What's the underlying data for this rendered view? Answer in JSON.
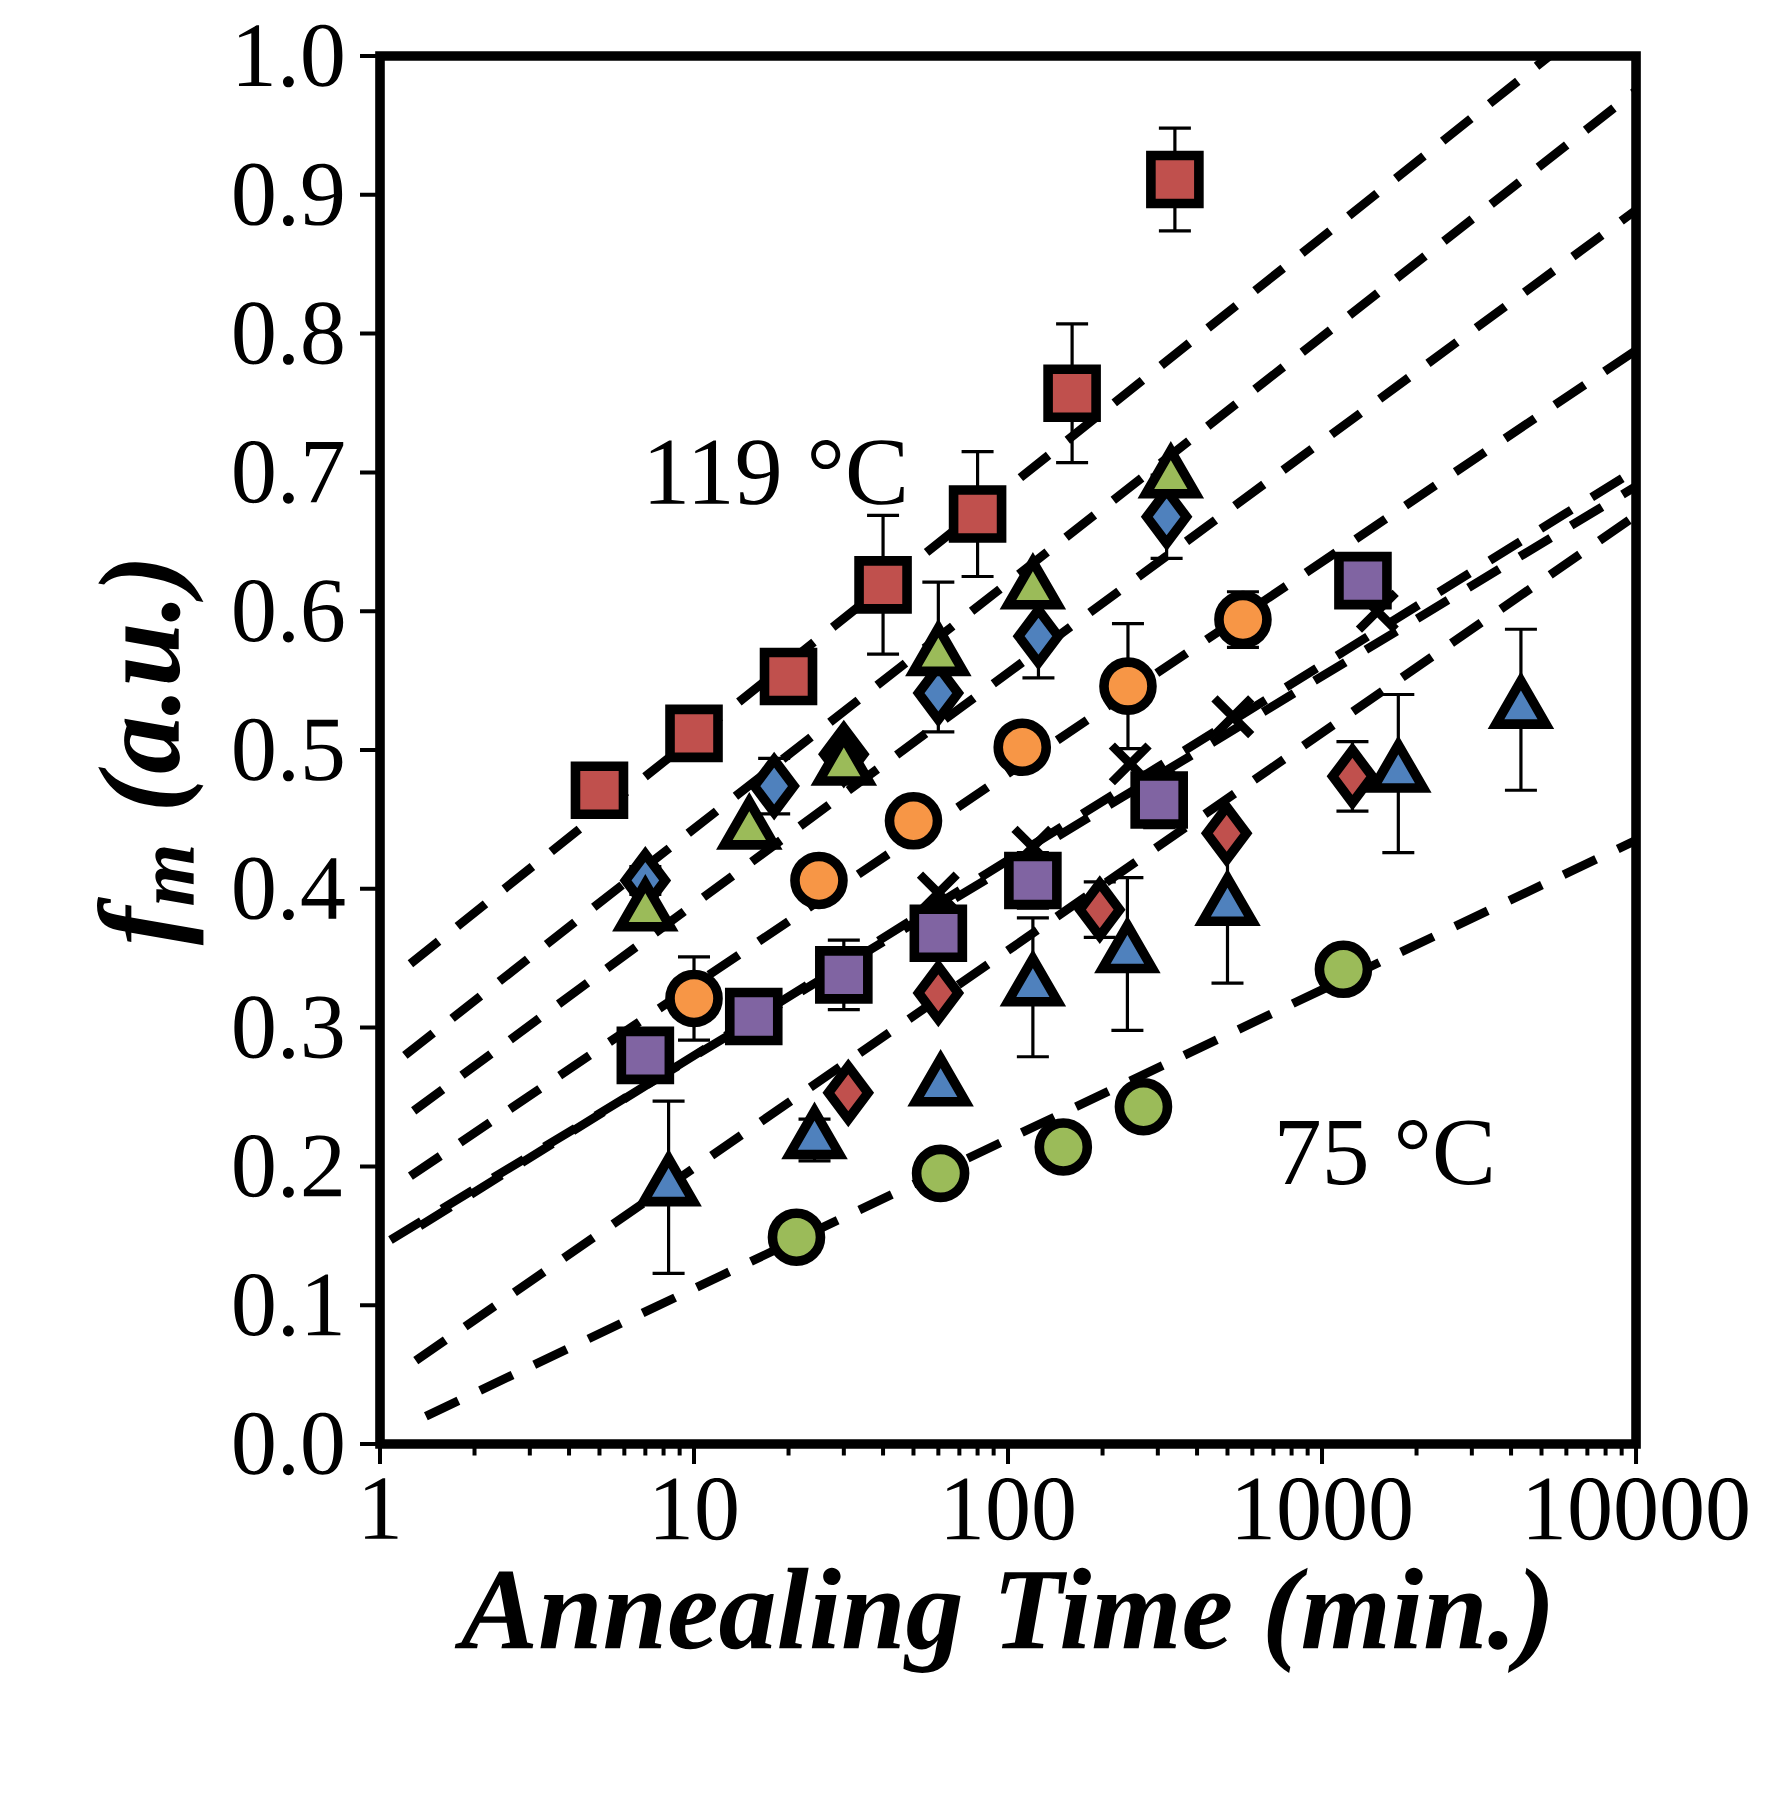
{
  "chart_data": {
    "type": "scatter",
    "xlabel": "Annealing Time (min.)",
    "ylabel": "*f*$_{m}$ (a.u.)",
    "log": "x",
    "xlim": [
      1,
      10000
    ],
    "xticks": [
      1,
      10,
      100,
      1000,
      10000
    ],
    "ylim": [
      0,
      1
    ],
    "yticks": [
      {
        "value": 0,
        "label": "0.0"
      },
      {
        "value": 0.1,
        "label": "0.1"
      },
      {
        "value": 0.2,
        "label": "0.2"
      },
      {
        "value": 0.3,
        "label": "0.3"
      },
      {
        "value": 0.4,
        "label": "0.4"
      },
      {
        "value": 0.5,
        "label": "0.5"
      },
      {
        "value": 0.6,
        "label": "0.6"
      },
      {
        "value": 0.7,
        "label": "0.7"
      },
      {
        "value": 0.8,
        "label": "0.8"
      },
      {
        "value": 0.9,
        "label": "0.9"
      },
      {
        "value": 1,
        "label": "1.0"
      }
    ],
    "grid": false,
    "annotations": [
      "119 °C",
      "75 °C"
    ],
    "series": [
      {
        "type": "line",
        "color": "#000000",
        "line_style": "dashed",
        "marker": "none",
        "x": [
          1.25,
          5300
        ],
        "values": [
          0.346,
          1.0
        ]
      },
      {
        "type": "line",
        "color": "#000000",
        "line_style": "dashed",
        "marker": "none",
        "x": [
          1.2,
          10000
        ],
        "values": [
          0.28,
          0.975
        ]
      },
      {
        "type": "line",
        "color": "#000000",
        "line_style": "dashed",
        "marker": "none",
        "x": [
          1.28,
          10000
        ],
        "values": [
          0.24,
          0.889
        ]
      },
      {
        "type": "line",
        "color": "#000000",
        "line_style": "dashed",
        "marker": "none",
        "x": [
          1.25,
          10000
        ],
        "values": [
          0.193,
          0.788
        ]
      },
      {
        "type": "line",
        "color": "#000000",
        "line_style": "dashed",
        "marker": "none",
        "x": [
          1.34,
          10000
        ],
        "values": [
          0.157,
          0.702
        ]
      },
      {
        "type": "line",
        "color": "#000000",
        "line_style": "dashed",
        "marker": "none",
        "x": [
          1.08,
          10000
        ],
        "values": [
          0.147,
          0.69
        ]
      },
      {
        "type": "line",
        "color": "#000000",
        "line_style": "dashed",
        "marker": "none",
        "x": [
          1.3,
          10000
        ],
        "values": [
          0.06,
          0.669
        ]
      },
      {
        "type": "line",
        "color": "#000000",
        "line_style": "dashed",
        "marker": "none",
        "x": [
          1.4,
          10000
        ],
        "values": [
          0.02,
          0.435
        ]
      },
      {
        "color": "#c0504d",
        "marker": "square",
        "x": [
          5,
          10,
          20,
          40,
          80,
          160,
          340
        ],
        "values": [
          0.471,
          0.512,
          0.553,
          0.619,
          0.67,
          0.757,
          0.911
        ],
        "errors": [
          null,
          null,
          null,
          0.05,
          0.045,
          0.05,
          0.037
        ]
      },
      {
        "color": "#4f81bd",
        "marker": "diamond",
        "x": [
          7,
          18,
          30,
          60,
          125,
          320
        ],
        "values": [
          0.406,
          0.474,
          0.497,
          0.541,
          0.582,
          0.668
        ],
        "errors": [
          0.01,
          0.02,
          null,
          null,
          0.03,
          0.03
        ]
      },
      {
        "color": "#9bbb59",
        "marker": "triangle",
        "x": [
          7,
          15,
          30,
          60,
          120,
          330
        ],
        "values": [
          0.383,
          0.442,
          0.488,
          0.567,
          0.615,
          0.695
        ],
        "errors": [
          null,
          null,
          null,
          0.054,
          null,
          null
        ]
      },
      {
        "color": "#000000",
        "marker": "cross",
        "x": [
          60,
          120,
          245,
          520,
          1500
        ],
        "values": [
          0.397,
          0.43,
          0.49,
          0.524,
          0.6
        ]
      },
      {
        "color": "#f79646",
        "marker": "circle",
        "x": [
          10,
          25,
          50,
          111,
          241,
          560
        ],
        "values": [
          0.321,
          0.406,
          0.449,
          0.502,
          0.546,
          0.594
        ],
        "errors": [
          0.03,
          null,
          null,
          null,
          0.045,
          0.02
        ]
      },
      {
        "color": "#8064a2",
        "marker": "square",
        "x": [
          7,
          15.5,
          30,
          60,
          120,
          303,
          1350
        ],
        "values": [
          0.28,
          0.308,
          0.338,
          0.368,
          0.406,
          0.464,
          0.622
        ],
        "errors": [
          null,
          null,
          0.025,
          null,
          0.02,
          0.02,
          null
        ]
      },
      {
        "color": "#c0504d",
        "marker": "diamond",
        "x": [
          31,
          60,
          196,
          497,
          1250
        ],
        "values": [
          0.253,
          0.325,
          0.385,
          0.44,
          0.481
        ],
        "errors": [
          null,
          null,
          0.02,
          null,
          0.025
        ]
      },
      {
        "color": "#4f81bd",
        "marker": "triangle",
        "x": [
          8.3,
          24.2,
          61,
          120,
          240,
          500,
          1750,
          4300
        ],
        "values": [
          0.185,
          0.219,
          0.257,
          0.329,
          0.353,
          0.387,
          0.483,
          0.529
        ],
        "errors": [
          0.062,
          0.015,
          null,
          0.05,
          0.055,
          0.055,
          0.057,
          0.058
        ]
      },
      {
        "color": "#9bbb59",
        "marker": "circle",
        "x": [
          21.2,
          61,
          150,
          270,
          1170
        ],
        "values": [
          0.149,
          0.195,
          0.214,
          0.243,
          0.342
        ]
      }
    ]
  }
}
